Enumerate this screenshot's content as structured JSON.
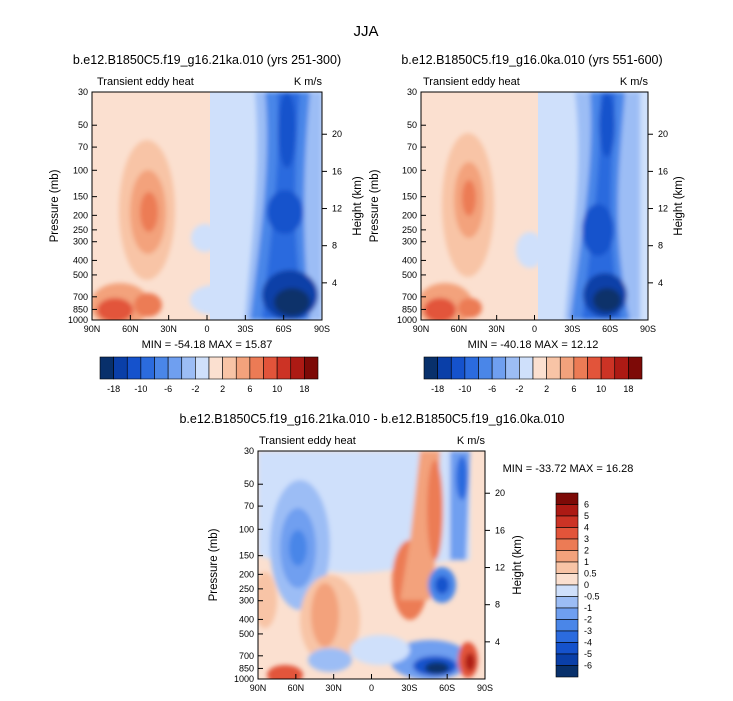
{
  "figure": {
    "title": "JJA"
  },
  "chart_data": [
    {
      "type": "heatmap",
      "title": "b.e12.B1850C5.f19_g16.21ka.010 (yrs 251-300)",
      "left_string": "Transient eddy heat",
      "right_string": "K m/s",
      "xlabel": "",
      "ylabel": "Pressure (mb)",
      "ylabel_right": "Height (km)",
      "x_ticks": [
        "90N",
        "60N",
        "30N",
        "0",
        "30S",
        "60S",
        "90S"
      ],
      "y_ticks": [
        "30",
        "50",
        "70",
        "100",
        "150",
        "200",
        "250",
        "300",
        "400",
        "500",
        "700",
        "850",
        "1000"
      ],
      "height_ticks": [
        "20",
        "16",
        "12",
        "8",
        "4"
      ],
      "min_max_text": "MIN = -54.18   MAX =  15.87",
      "min": -54.18,
      "max": 15.87,
      "colorbar_levels": [
        "-18",
        "-10",
        "-6",
        "-2",
        "2",
        "6",
        "10",
        "18"
      ]
    },
    {
      "type": "heatmap",
      "title": "b.e12.B1850C5.f19_g16.0ka.010 (yrs 551-600)",
      "left_string": "Transient eddy heat",
      "right_string": "K m/s",
      "xlabel": "",
      "ylabel": "Pressure (mb)",
      "ylabel_right": "Height (km)",
      "x_ticks": [
        "90N",
        "60N",
        "30N",
        "0",
        "30S",
        "60S",
        "90S"
      ],
      "y_ticks": [
        "30",
        "50",
        "70",
        "100",
        "150",
        "200",
        "250",
        "300",
        "400",
        "500",
        "700",
        "850",
        "1000"
      ],
      "height_ticks": [
        "20",
        "16",
        "12",
        "8",
        "4"
      ],
      "min_max_text": "MIN = -40.18   MAX =  12.12",
      "min": -40.18,
      "max": 12.12,
      "colorbar_levels": [
        "-18",
        "-10",
        "-6",
        "-2",
        "2",
        "6",
        "10",
        "18"
      ]
    },
    {
      "type": "heatmap",
      "title": "b.e12.B1850C5.f19_g16.21ka.010 - b.e12.B1850C5.f19_g16.0ka.010",
      "left_string": "Transient eddy heat",
      "right_string": "K m/s",
      "xlabel": "",
      "ylabel": "Pressure (mb)",
      "ylabel_right": "Height (km)",
      "x_ticks": [
        "90N",
        "60N",
        "30N",
        "0",
        "30S",
        "60S",
        "90S"
      ],
      "y_ticks": [
        "30",
        "50",
        "70",
        "100",
        "150",
        "200",
        "250",
        "300",
        "400",
        "500",
        "700",
        "850",
        "1000"
      ],
      "height_ticks": [
        "20",
        "16",
        "12",
        "8",
        "4"
      ],
      "min_max_text": "MIN = -33.72   MAX =  16.28",
      "min": -33.72,
      "max": 16.28,
      "colorbar_levels": [
        "6",
        "5",
        "4",
        "3",
        "2",
        "1",
        "0.5",
        "0",
        "-0.5",
        "-1",
        "-2",
        "-3",
        "-4",
        "-5",
        "-6"
      ]
    }
  ],
  "colors": {
    "blues": [
      "#08306b",
      "#0a3fa8",
      "#1552cc",
      "#2b6bde",
      "#4a86e8",
      "#6f9ff0",
      "#9cbdf5",
      "#cfe0fb"
    ],
    "reds": [
      "#fbe0d0",
      "#f8c4a6",
      "#f3a27c",
      "#ec7b55",
      "#e2543a",
      "#cc3325",
      "#ad1a14",
      "#7d0a07"
    ]
  }
}
